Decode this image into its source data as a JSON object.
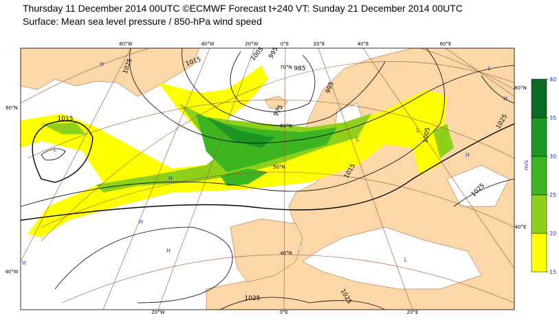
{
  "header": {
    "title": "Thursday 11 December 2014 00UTC ©ECMWF Forecast t+240 VT: Sunday 21 December 2014 00UTC",
    "subtitle": "Surface: Mean sea level pressure / 850-hPa wind speed"
  },
  "map": {
    "graticule_labels": [
      "60°W",
      "40°W",
      "20°W",
      "0°E",
      "20°E",
      "40°E",
      "60°E",
      "60°N",
      "40°W",
      "80°N",
      "40°E",
      "20°W",
      "0°E",
      "20°E",
      "70°N",
      "60°N",
      "50°N",
      "40°N"
    ],
    "isobar_labels": [
      "1025",
      "1015",
      "1005",
      "995",
      "985",
      "975",
      "1015",
      "995",
      "1015",
      "1005",
      "1025",
      "1025",
      "1025",
      "1025"
    ],
    "pressure_centers": [
      "H",
      "H",
      "L",
      "L",
      "H",
      "H",
      "H",
      "L",
      "L",
      "H",
      "L",
      "H"
    ]
  },
  "colorbar": {
    "unit": "m/s",
    "ticks": [
      15,
      20,
      25,
      30,
      35,
      40
    ],
    "colors": [
      "#ffff00",
      "#8fd11a",
      "#3cb521",
      "#1c9623",
      "#0a6b25"
    ]
  }
}
